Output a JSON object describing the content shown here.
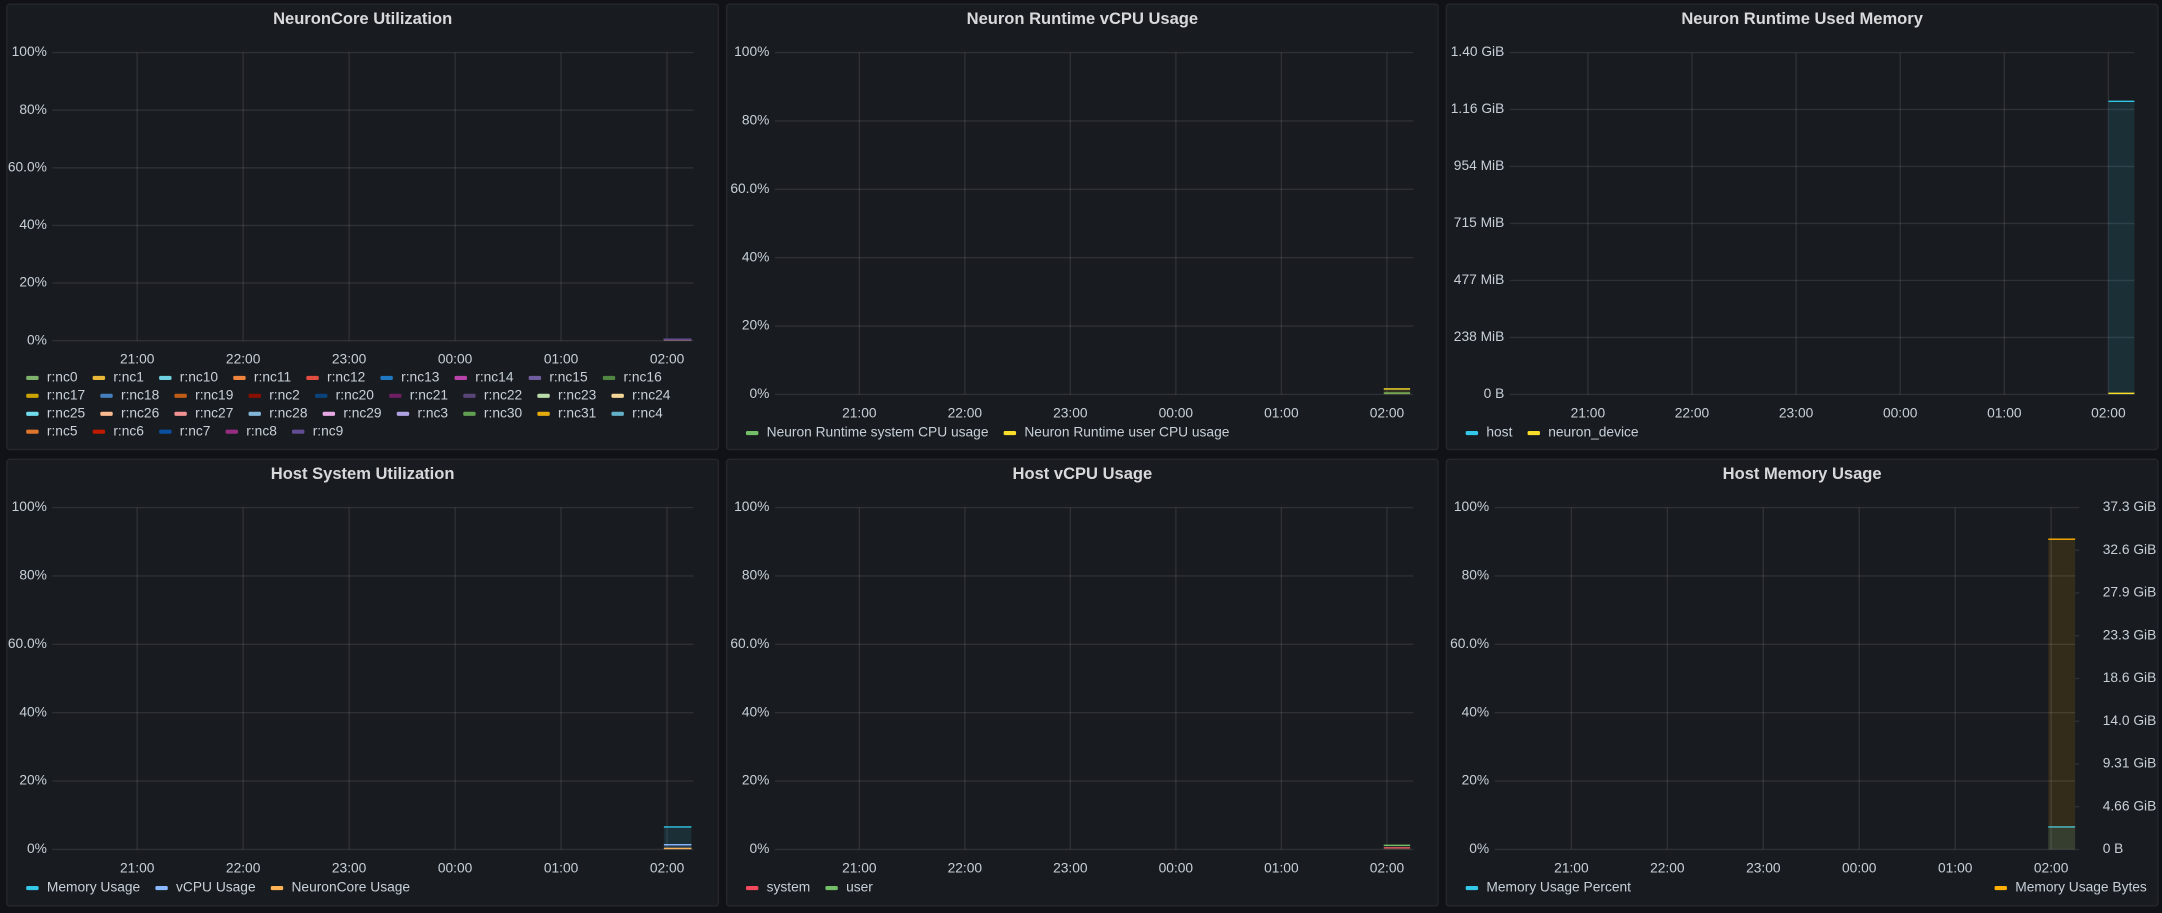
{
  "chart_data": [
    {
      "type": "line",
      "title": "NeuronCore Utilization",
      "fill": true,
      "grid": true,
      "x": [
        25.97,
        26.23
      ],
      "xlim": [
        20.2,
        26.25
      ],
      "xticks": [
        {
          "value": 21,
          "label": "21:00"
        },
        {
          "value": 22,
          "label": "22:00"
        },
        {
          "value": 23,
          "label": "23:00"
        },
        {
          "value": 24,
          "label": "00:00"
        },
        {
          "value": 25,
          "label": "01:00"
        },
        {
          "value": 26,
          "label": "02:00"
        }
      ],
      "ylim": [
        0,
        100
      ],
      "yticks": [
        {
          "value": 0,
          "label": "0%"
        },
        {
          "value": 20,
          "label": "20%"
        },
        {
          "value": 40,
          "label": "40%"
        },
        {
          "value": 60,
          "label": "60.0%"
        },
        {
          "value": 80,
          "label": "80%"
        },
        {
          "value": 100,
          "label": "100%"
        }
      ],
      "series": [
        {
          "name": "r:nc0",
          "color": "#7eb26d",
          "values": [
            0.5,
            0.5
          ]
        },
        {
          "name": "r:nc1",
          "color": "#eab839",
          "values": [
            0.5,
            0.5
          ]
        },
        {
          "name": "r:nc10",
          "color": "#6ed0e0",
          "values": [
            0.5,
            0.5
          ]
        },
        {
          "name": "r:nc11",
          "color": "#ef843c",
          "values": [
            0.5,
            0.5
          ]
        },
        {
          "name": "r:nc12",
          "color": "#e24d42",
          "values": [
            0.5,
            0.5
          ]
        },
        {
          "name": "r:nc13",
          "color": "#1f78c1",
          "values": [
            0.5,
            0.5
          ]
        },
        {
          "name": "r:nc14",
          "color": "#ba43a9",
          "values": [
            0.5,
            0.5
          ]
        },
        {
          "name": "r:nc15",
          "color": "#705da0",
          "values": [
            0.5,
            0.5
          ]
        },
        {
          "name": "r:nc16",
          "color": "#508642",
          "values": [
            0.5,
            0.5
          ]
        },
        {
          "name": "r:nc17",
          "color": "#cca300",
          "values": [
            0.5,
            0.5
          ]
        },
        {
          "name": "r:nc18",
          "color": "#447ebc",
          "values": [
            0.5,
            0.5
          ]
        },
        {
          "name": "r:nc19",
          "color": "#c15c17",
          "values": [
            0.5,
            0.5
          ]
        },
        {
          "name": "r:nc2",
          "color": "#890f02",
          "values": [
            0.5,
            0.5
          ]
        },
        {
          "name": "r:nc20",
          "color": "#0a437c",
          "values": [
            0.5,
            0.5
          ]
        },
        {
          "name": "r:nc21",
          "color": "#6d1f62",
          "values": [
            0.5,
            0.5
          ]
        },
        {
          "name": "r:nc22",
          "color": "#584477",
          "values": [
            0.5,
            0.5
          ]
        },
        {
          "name": "r:nc23",
          "color": "#b7dbab",
          "values": [
            0.5,
            0.5
          ]
        },
        {
          "name": "r:nc24",
          "color": "#f4d598",
          "values": [
            0.5,
            0.5
          ]
        },
        {
          "name": "r:nc25",
          "color": "#70dbed",
          "values": [
            0.5,
            0.5
          ]
        },
        {
          "name": "r:nc26",
          "color": "#f9ba8f",
          "values": [
            0.5,
            0.5
          ]
        },
        {
          "name": "r:nc27",
          "color": "#f29191",
          "values": [
            0.5,
            0.5
          ]
        },
        {
          "name": "r:nc28",
          "color": "#82b5d8",
          "values": [
            0.5,
            0.5
          ]
        },
        {
          "name": "r:nc29",
          "color": "#e5a8e2",
          "values": [
            0.5,
            0.5
          ]
        },
        {
          "name": "r:nc3",
          "color": "#aea2e0",
          "values": [
            0.5,
            0.5
          ]
        },
        {
          "name": "r:nc30",
          "color": "#629e51",
          "values": [
            0.5,
            0.5
          ]
        },
        {
          "name": "r:nc31",
          "color": "#e5ac0e",
          "values": [
            0.5,
            0.5
          ]
        },
        {
          "name": "r:nc4",
          "color": "#64b0c8",
          "values": [
            0.5,
            0.5
          ]
        },
        {
          "name": "r:nc5",
          "color": "#e0752d",
          "values": [
            0.5,
            0.5
          ]
        },
        {
          "name": "r:nc6",
          "color": "#bf1b00",
          "values": [
            0.5,
            0.5
          ]
        },
        {
          "name": "r:nc7",
          "color": "#0a50a1",
          "values": [
            0.5,
            0.5
          ]
        },
        {
          "name": "r:nc8",
          "color": "#962d82",
          "values": [
            0.5,
            0.5
          ]
        },
        {
          "name": "r:nc9",
          "color": "#614d93",
          "values": [
            0.5,
            0.5
          ]
        }
      ]
    },
    {
      "type": "line",
      "title": "Neuron Runtime vCPU Usage",
      "fill": true,
      "grid": true,
      "x": [
        25.97,
        26.22
      ],
      "xlim": [
        20.2,
        26.25
      ],
      "xticks": [
        {
          "value": 21,
          "label": "21:00"
        },
        {
          "value": 22,
          "label": "22:00"
        },
        {
          "value": 23,
          "label": "23:00"
        },
        {
          "value": 24,
          "label": "00:00"
        },
        {
          "value": 25,
          "label": "01:00"
        },
        {
          "value": 26,
          "label": "02:00"
        }
      ],
      "ylim": [
        0,
        100
      ],
      "yticks": [
        {
          "value": 0,
          "label": "0%"
        },
        {
          "value": 20,
          "label": "20%"
        },
        {
          "value": 40,
          "label": "40%"
        },
        {
          "value": 60,
          "label": "60.0%"
        },
        {
          "value": 80,
          "label": "80%"
        },
        {
          "value": 100,
          "label": "100%"
        }
      ],
      "series": [
        {
          "name": "Neuron Runtime system CPU usage",
          "color": "#73bf69",
          "values": [
            0.4,
            0.4
          ]
        },
        {
          "name": "Neuron Runtime user CPU usage",
          "color": "#fade2a",
          "values": [
            1.6,
            1.6
          ]
        }
      ]
    },
    {
      "type": "line",
      "title": "Neuron Runtime Used Memory",
      "fill": true,
      "grid": true,
      "x": [
        26.0,
        26.25
      ],
      "xlim": [
        20.25,
        26.25
      ],
      "xticks": [
        {
          "value": 21,
          "label": "21:00"
        },
        {
          "value": 22,
          "label": "22:00"
        },
        {
          "value": 23,
          "label": "23:00"
        },
        {
          "value": 24,
          "label": "00:00"
        },
        {
          "value": 25,
          "label": "01:00"
        },
        {
          "value": 26,
          "label": "02:00"
        }
      ],
      "ylim": [
        0,
        1500000000
      ],
      "yticks": [
        {
          "value": 0,
          "label": "0 B"
        },
        {
          "value": 250000000,
          "label": "238 MiB"
        },
        {
          "value": 500000000,
          "label": "477 MiB"
        },
        {
          "value": 750000000,
          "label": "715 MiB"
        },
        {
          "value": 1000000000,
          "label": "954 MiB"
        },
        {
          "value": 1250000000,
          "label": "1.16 GiB"
        },
        {
          "value": 1500000000,
          "label": "1.40 GiB"
        }
      ],
      "series": [
        {
          "name": "host",
          "color": "#33c8e8",
          "values": [
            1286000000,
            1286000000
          ]
        },
        {
          "name": "neuron_device",
          "color": "#fade2a",
          "values": [
            5000000,
            5000000
          ]
        }
      ]
    },
    {
      "type": "line",
      "title": "Host System Utilization",
      "fill": true,
      "grid": true,
      "x": [
        25.97,
        26.23
      ],
      "xlim": [
        20.2,
        26.25
      ],
      "xticks": [
        {
          "value": 21,
          "label": "21:00"
        },
        {
          "value": 22,
          "label": "22:00"
        },
        {
          "value": 23,
          "label": "23:00"
        },
        {
          "value": 24,
          "label": "00:00"
        },
        {
          "value": 25,
          "label": "01:00"
        },
        {
          "value": 26,
          "label": "02:00"
        }
      ],
      "ylim": [
        0,
        100
      ],
      "yticks": [
        {
          "value": 0,
          "label": "0%"
        },
        {
          "value": 20,
          "label": "20%"
        },
        {
          "value": 40,
          "label": "40%"
        },
        {
          "value": 60,
          "label": "60.0%"
        },
        {
          "value": 80,
          "label": "80%"
        },
        {
          "value": 100,
          "label": "100%"
        }
      ],
      "series": [
        {
          "name": "Memory Usage",
          "color": "#33c8e8",
          "values": [
            6.6,
            6.6
          ]
        },
        {
          "name": "vCPU Usage",
          "color": "#8ab8ff",
          "values": [
            1.4,
            1.4
          ]
        },
        {
          "name": "NeuronCore Usage",
          "color": "#ffb357",
          "values": [
            0.3,
            0.3
          ]
        }
      ]
    },
    {
      "type": "line",
      "title": "Host vCPU Usage",
      "fill": true,
      "grid": true,
      "x": [
        25.97,
        26.22
      ],
      "xlim": [
        20.2,
        26.25
      ],
      "xticks": [
        {
          "value": 21,
          "label": "21:00"
        },
        {
          "value": 22,
          "label": "22:00"
        },
        {
          "value": 23,
          "label": "23:00"
        },
        {
          "value": 24,
          "label": "00:00"
        },
        {
          "value": 25,
          "label": "01:00"
        },
        {
          "value": 26,
          "label": "02:00"
        }
      ],
      "ylim": [
        0,
        100
      ],
      "yticks": [
        {
          "value": 0,
          "label": "0%"
        },
        {
          "value": 20,
          "label": "20%"
        },
        {
          "value": 40,
          "label": "40%"
        },
        {
          "value": 60,
          "label": "60.0%"
        },
        {
          "value": 80,
          "label": "80%"
        },
        {
          "value": 100,
          "label": "100%"
        }
      ],
      "series": [
        {
          "name": "system",
          "color": "#f2495c",
          "values": [
            0.5,
            0.5
          ]
        },
        {
          "name": "user",
          "color": "#73bf69",
          "values": [
            1.2,
            1.2
          ]
        }
      ]
    },
    {
      "type": "line",
      "title": "Host Memory Usage",
      "fill": true,
      "grid": true,
      "x": [
        25.97,
        26.25
      ],
      "xlim": [
        20.2,
        26.25
      ],
      "xticks": [
        {
          "value": 21,
          "label": "21:00"
        },
        {
          "value": 22,
          "label": "22:00"
        },
        {
          "value": 23,
          "label": "23:00"
        },
        {
          "value": 24,
          "label": "00:00"
        },
        {
          "value": 25,
          "label": "01:00"
        },
        {
          "value": 26,
          "label": "02:00"
        }
      ],
      "ylim": [
        0,
        100
      ],
      "yticks": [
        {
          "value": 0,
          "label": "0%"
        },
        {
          "value": 20,
          "label": "20%"
        },
        {
          "value": 40,
          "label": "40%"
        },
        {
          "value": 60,
          "label": "60.0%"
        },
        {
          "value": 80,
          "label": "80%"
        },
        {
          "value": 100,
          "label": "100%"
        }
      ],
      "y2lim": [
        0,
        40000000000
      ],
      "y2ticks": [
        {
          "value": 0,
          "label": "0 B"
        },
        {
          "value": 5000000000,
          "label": "4.66 GiB"
        },
        {
          "value": 10000000000,
          "label": "9.31 GiB"
        },
        {
          "value": 15000000000,
          "label": "14.0 GiB"
        },
        {
          "value": 20000000000,
          "label": "18.6 GiB"
        },
        {
          "value": 25000000000,
          "label": "23.3 GiB"
        },
        {
          "value": 30000000000,
          "label": "27.9 GiB"
        },
        {
          "value": 35000000000,
          "label": "32.6 GiB"
        },
        {
          "value": 40000000000,
          "label": "37.3 GiB"
        }
      ],
      "series": [
        {
          "name": "Memory Usage Percent",
          "color": "#33c8e8",
          "values": [
            6.6,
            6.6
          ]
        },
        {
          "name": "Memory Usage Bytes",
          "color": "#ffb000",
          "axis": "y2",
          "values": [
            36300000000,
            36300000000
          ]
        }
      ]
    }
  ]
}
